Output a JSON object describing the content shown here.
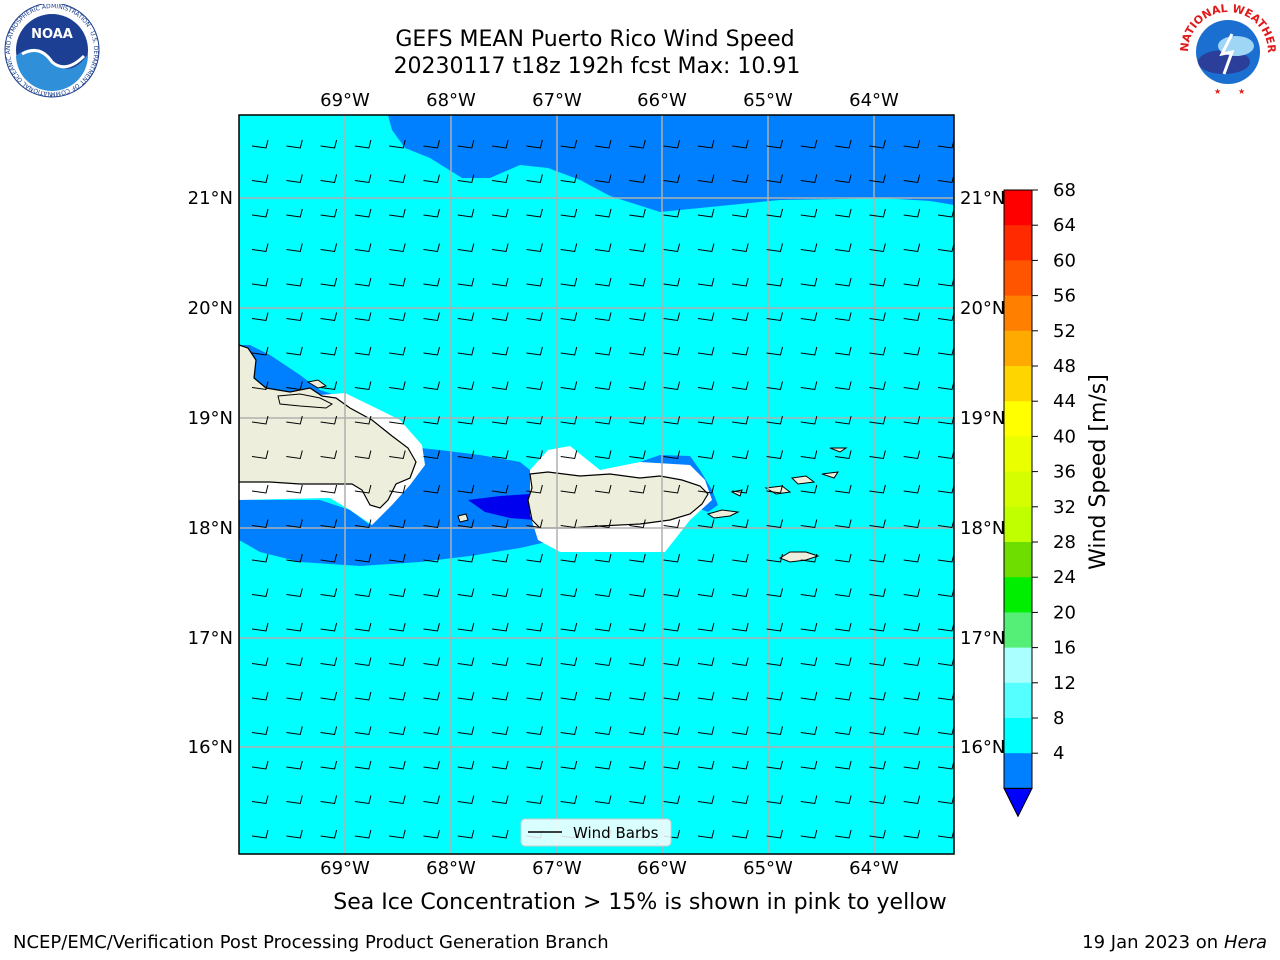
{
  "title": {
    "line1": "GEFS MEAN Puerto Rico Wind Speed",
    "line2": "20230117 t18z 192h fcst   Max: 10.91"
  },
  "map": {
    "lon_labels": [
      "69°W",
      "68°W",
      "67°W",
      "66°W",
      "65°W",
      "64°W"
    ],
    "lat_labels": [
      "21°N",
      "20°N",
      "19°N",
      "18°N",
      "17°N",
      "16°N"
    ],
    "legend_label": "Wind Barbs",
    "land_color": "#eeeedd",
    "barb_direction": "from east"
  },
  "colorbar": {
    "label": "Wind Speed [m/s]",
    "ticks": [
      "68",
      "64",
      "60",
      "56",
      "52",
      "48",
      "44",
      "40",
      "36",
      "32",
      "28",
      "24",
      "20",
      "16",
      "12",
      "8",
      "4"
    ],
    "colors": [
      "#ff0000",
      "#ff2a00",
      "#ff5500",
      "#ff8000",
      "#ffaa00",
      "#ffd500",
      "#ffff00",
      "#eaff00",
      "#d5ff00",
      "#bfff00",
      "#6edd00",
      "#00ee00",
      "#55ee77",
      "#aaffff",
      "#55ffff",
      "#00ffff",
      "#0080ff"
    ],
    "extend_color": "#0000ff"
  },
  "logos": {
    "noaa_text": "NOAA",
    "noaa_ring_text": "NATIONAL OCEANIC AND ATMOSPHERIC ADMINISTRATION · U.S. DEPARTMENT OF COMMERCE",
    "nws_ring_text": "NATIONAL WEATHER SERVICE"
  },
  "footer": {
    "note": "Sea Ice Concentration > 15% is shown in pink to yellow",
    "left": "NCEP/EMC/Verification Post Processing Product Generation Branch",
    "right_date": "19 Jan 2023 on ",
    "right_machine": "Hera"
  },
  "colors": {
    "sea_main": "#00ffff",
    "sea_band": "#0080ff",
    "sea_core": "#0000ee",
    "grid": "#b0b0b0"
  }
}
